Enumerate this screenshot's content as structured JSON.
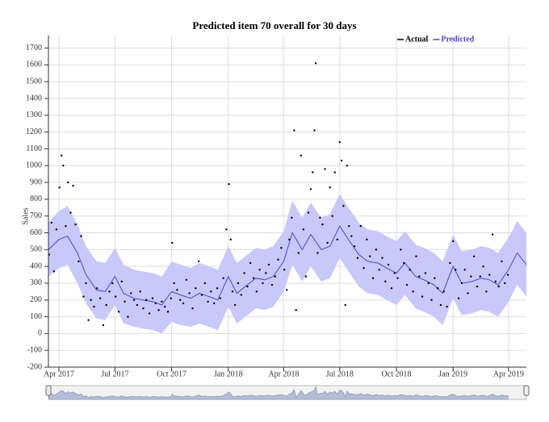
{
  "chart_data": {
    "type": "line",
    "title": "Predicted item 70 overall for 30 days",
    "y_label": "Sales",
    "xlim": [
      "2017-03-15",
      "2019-04-30"
    ],
    "xticks": [
      {
        "value": "2017-04-01",
        "label": "Apr 2017"
      },
      {
        "value": "2017-07-01",
        "label": "Jul 2017"
      },
      {
        "value": "2017-10-01",
        "label": "Oct 2017"
      },
      {
        "value": "2018-01-01",
        "label": "Jan 2018"
      },
      {
        "value": "2018-04-01",
        "label": "Apr 2018"
      },
      {
        "value": "2018-07-01",
        "label": "Jul 2018"
      },
      {
        "value": "2018-10-01",
        "label": "Oct 2018"
      },
      {
        "value": "2019-01-01",
        "label": "Jan 2019"
      },
      {
        "value": "2019-04-01",
        "label": "Apr 2019"
      }
    ],
    "ylim": [
      -200,
      1775
    ],
    "yticks": [
      -200,
      -100,
      0,
      100,
      200,
      300,
      400,
      500,
      600,
      700,
      800,
      900,
      1000,
      1100,
      1200,
      1300,
      1400,
      1500,
      1600,
      1700
    ],
    "grid": true,
    "legend": "top-right",
    "band_color": "#c8c8fa",
    "series": [
      {
        "name": "Actual",
        "color": "#000000",
        "mode": "markers",
        "x": [
          "2017-03-16",
          "2017-03-20",
          "2017-03-24",
          "2017-03-28",
          "2017-04-02",
          "2017-04-05",
          "2017-04-08",
          "2017-04-12",
          "2017-04-16",
          "2017-04-20",
          "2017-04-24",
          "2017-04-28",
          "2017-05-03",
          "2017-05-07",
          "2017-05-11",
          "2017-05-15",
          "2017-05-19",
          "2017-05-23",
          "2017-05-28",
          "2017-06-02",
          "2017-06-07",
          "2017-06-12",
          "2017-06-17",
          "2017-06-22",
          "2017-06-27",
          "2017-07-02",
          "2017-07-07",
          "2017-07-12",
          "2017-07-17",
          "2017-07-22",
          "2017-07-27",
          "2017-08-01",
          "2017-08-06",
          "2017-08-11",
          "2017-08-16",
          "2017-08-21",
          "2017-08-26",
          "2017-08-31",
          "2017-09-05",
          "2017-09-10",
          "2017-09-15",
          "2017-09-20",
          "2017-09-25",
          "2017-09-30",
          "2017-10-02",
          "2017-10-05",
          "2017-10-10",
          "2017-10-15",
          "2017-10-20",
          "2017-10-25",
          "2017-10-30",
          "2017-11-04",
          "2017-11-09",
          "2017-11-14",
          "2017-11-19",
          "2017-11-24",
          "2017-11-29",
          "2017-12-04",
          "2017-12-09",
          "2017-12-14",
          "2017-12-19",
          "2017-12-24",
          "2017-12-29",
          "2018-01-02",
          "2018-01-05",
          "2018-01-08",
          "2018-01-12",
          "2018-01-17",
          "2018-01-22",
          "2018-01-27",
          "2018-02-01",
          "2018-02-06",
          "2018-02-11",
          "2018-02-16",
          "2018-02-21",
          "2018-02-26",
          "2018-03-03",
          "2018-03-08",
          "2018-03-13",
          "2018-03-18",
          "2018-03-23",
          "2018-03-28",
          "2018-04-02",
          "2018-04-06",
          "2018-04-10",
          "2018-04-14",
          "2018-04-18",
          "2018-04-21",
          "2018-04-25",
          "2018-04-29",
          "2018-05-03",
          "2018-05-07",
          "2018-05-11",
          "2018-05-15",
          "2018-05-18",
          "2018-05-21",
          "2018-05-23",
          "2018-05-26",
          "2018-05-30",
          "2018-06-03",
          "2018-06-07",
          "2018-06-11",
          "2018-06-15",
          "2018-06-19",
          "2018-06-23",
          "2018-06-27",
          "2018-07-01",
          "2018-07-04",
          "2018-07-07",
          "2018-07-10",
          "2018-07-13",
          "2018-07-16",
          "2018-07-20",
          "2018-07-25",
          "2018-07-30",
          "2018-08-04",
          "2018-08-09",
          "2018-08-14",
          "2018-08-19",
          "2018-08-24",
          "2018-08-29",
          "2018-09-03",
          "2018-09-08",
          "2018-09-13",
          "2018-09-18",
          "2018-09-23",
          "2018-09-28",
          "2018-10-03",
          "2018-10-08",
          "2018-10-13",
          "2018-10-18",
          "2018-10-23",
          "2018-10-28",
          "2018-11-02",
          "2018-11-07",
          "2018-11-12",
          "2018-11-17",
          "2018-11-22",
          "2018-11-27",
          "2018-12-02",
          "2018-12-07",
          "2018-12-12",
          "2018-12-17",
          "2018-12-22",
          "2018-12-27",
          "2019-01-01",
          "2019-01-05",
          "2019-01-10",
          "2019-01-15",
          "2019-01-20",
          "2019-01-25",
          "2019-01-30",
          "2019-02-04",
          "2019-02-09",
          "2019-02-14",
          "2019-02-19",
          "2019-02-24",
          "2019-03-01",
          "2019-03-06",
          "2019-03-11",
          "2019-03-16",
          "2019-03-21",
          "2019-03-26",
          "2019-03-31"
        ],
        "values": [
          470,
          660,
          370,
          620,
          870,
          1060,
          1000,
          640,
          900,
          720,
          880,
          650,
          430,
          580,
          220,
          300,
          80,
          200,
          160,
          270,
          210,
          50,
          170,
          250,
          300,
          220,
          130,
          310,
          190,
          100,
          240,
          200,
          170,
          250,
          150,
          200,
          120,
          210,
          180,
          140,
          190,
          160,
          130,
          210,
          540,
          300,
          260,
          200,
          180,
          320,
          240,
          150,
          270,
          430,
          230,
          300,
          190,
          250,
          180,
          270,
          210,
          330,
          620,
          890,
          560,
          250,
          170,
          300,
          230,
          360,
          280,
          420,
          330,
          250,
          380,
          300,
          360,
          410,
          290,
          340,
          440,
          510,
          380,
          260,
          560,
          690,
          1210,
          140,
          480,
          1060,
          620,
          340,
          720,
          860,
          960,
          1210,
          1610,
          480,
          690,
          650,
          980,
          540,
          870,
          700,
          960,
          560,
          1140,
          1030,
          760,
          170,
          1000,
          640,
          580,
          520,
          450,
          640,
          390,
          560,
          460,
          330,
          500,
          380,
          450,
          310,
          410,
          270,
          360,
          330,
          500,
          420,
          290,
          380,
          250,
          460,
          340,
          220,
          360,
          300,
          200,
          330,
          270,
          170,
          250,
          160,
          420,
          550,
          380,
          210,
          300,
          380,
          240,
          340,
          460,
          280,
          340,
          400,
          250,
          350,
          590,
          310,
          280,
          430,
          300,
          350
        ]
      },
      {
        "name": "Predicted",
        "color": "#4646d2",
        "mode": "lines",
        "x": [
          "2017-03-15",
          "2017-04-01",
          "2017-04-15",
          "2017-05-01",
          "2017-05-15",
          "2017-06-01",
          "2017-06-15",
          "2017-07-01",
          "2017-07-15",
          "2017-08-01",
          "2017-08-15",
          "2017-09-01",
          "2017-09-15",
          "2017-10-01",
          "2017-10-15",
          "2017-11-01",
          "2017-11-15",
          "2017-12-01",
          "2017-12-15",
          "2018-01-01",
          "2018-01-15",
          "2018-02-01",
          "2018-02-15",
          "2018-03-01",
          "2018-03-15",
          "2018-04-01",
          "2018-04-15",
          "2018-05-01",
          "2018-05-15",
          "2018-06-01",
          "2018-06-15",
          "2018-07-01",
          "2018-07-15",
          "2018-08-01",
          "2018-08-15",
          "2018-09-01",
          "2018-09-15",
          "2018-10-01",
          "2018-10-15",
          "2018-11-01",
          "2018-11-15",
          "2018-12-01",
          "2018-12-15",
          "2019-01-01",
          "2019-01-15",
          "2019-02-01",
          "2019-02-15",
          "2019-03-01",
          "2019-03-15",
          "2019-04-01",
          "2019-04-15",
          "2019-04-30"
        ],
        "values": [
          500,
          560,
          580,
          480,
          350,
          260,
          250,
          340,
          240,
          210,
          200,
          190,
          170,
          250,
          230,
          210,
          240,
          220,
          200,
          340,
          240,
          290,
          330,
          320,
          340,
          430,
          600,
          500,
          590,
          500,
          520,
          640,
          560,
          470,
          430,
          420,
          390,
          360,
          420,
          340,
          320,
          290,
          240,
          400,
          300,
          310,
          330,
          320,
          290,
          380,
          480,
          410
        ],
        "lower": [
          340,
          390,
          410,
          300,
          180,
          90,
          80,
          170,
          60,
          40,
          30,
          20,
          0,
          70,
          50,
          40,
          60,
          40,
          20,
          160,
          60,
          110,
          150,
          140,
          160,
          250,
          410,
          310,
          400,
          310,
          330,
          450,
          370,
          280,
          240,
          230,
          200,
          170,
          230,
          150,
          130,
          100,
          50,
          210,
          110,
          120,
          140,
          130,
          100,
          190,
          290,
          220
        ],
        "upper": [
          660,
          730,
          760,
          650,
          520,
          430,
          420,
          510,
          410,
          380,
          370,
          360,
          340,
          430,
          410,
          390,
          420,
          400,
          380,
          520,
          420,
          470,
          510,
          500,
          520,
          610,
          790,
          690,
          780,
          690,
          710,
          830,
          750,
          660,
          620,
          610,
          580,
          550,
          610,
          530,
          510,
          480,
          430,
          590,
          490,
          500,
          520,
          510,
          480,
          570,
          670,
          600
        ]
      }
    ]
  }
}
